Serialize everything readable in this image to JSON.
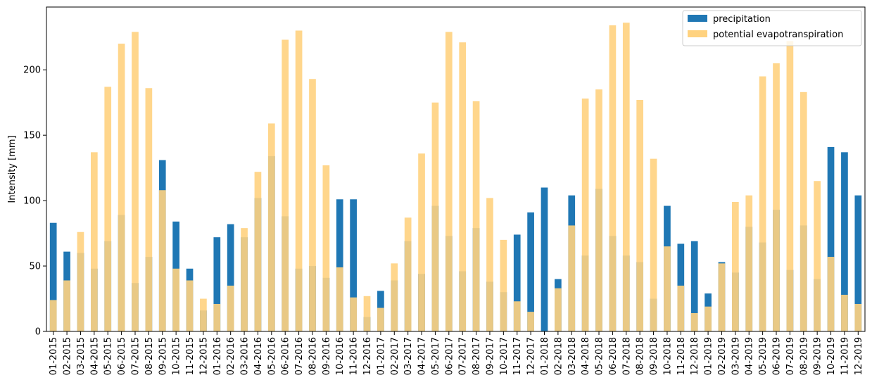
{
  "chart_data": {
    "type": "bar",
    "stacked": false,
    "overlay": true,
    "title": "",
    "xlabel": "",
    "ylabel": "Intensity [mm]",
    "ylim": [
      0,
      248
    ],
    "yticks": [
      0,
      50,
      100,
      150,
      200
    ],
    "grid": false,
    "legend_position": "top-right",
    "categories": [
      "01-2015",
      "02-2015",
      "03-2015",
      "04-2015",
      "05-2015",
      "06-2015",
      "07-2015",
      "08-2015",
      "09-2015",
      "10-2015",
      "11-2015",
      "12-2015",
      "01-2016",
      "02-2016",
      "03-2016",
      "04-2016",
      "05-2016",
      "06-2016",
      "07-2016",
      "08-2016",
      "09-2016",
      "10-2016",
      "11-2016",
      "12-2016",
      "01-2017",
      "02-2017",
      "03-2017",
      "04-2017",
      "05-2017",
      "06-2017",
      "07-2017",
      "08-2017",
      "09-2017",
      "10-2017",
      "11-2017",
      "12-2017",
      "01-2018",
      "02-2018",
      "03-2018",
      "04-2018",
      "05-2018",
      "06-2018",
      "07-2018",
      "08-2018",
      "09-2018",
      "10-2018",
      "11-2018",
      "12-2018",
      "01-2019",
      "02-2019",
      "03-2019",
      "04-2019",
      "05-2019",
      "06-2019",
      "07-2019",
      "08-2019",
      "09-2019",
      "10-2019",
      "11-2019",
      "12-2019"
    ],
    "series": [
      {
        "name": "precipitation",
        "color": "#1f77b4",
        "values": [
          83,
          61,
          60,
          48,
          69,
          89,
          37,
          57,
          131,
          84,
          48,
          16,
          72,
          82,
          72,
          102,
          134,
          88,
          48,
          50,
          41,
          101,
          101,
          11,
          31,
          39,
          69,
          44,
          96,
          73,
          46,
          79,
          38,
          30,
          74,
          91,
          110,
          40,
          104,
          58,
          109,
          73,
          58,
          53,
          25,
          96,
          67,
          69,
          29,
          53,
          45,
          80,
          68,
          93,
          47,
          81,
          40,
          141,
          137,
          104
        ]
      },
      {
        "name": "potential evapotranspiration",
        "color": "#ffd27f",
        "values": [
          24,
          39,
          76,
          137,
          187,
          220,
          229,
          186,
          108,
          48,
          39,
          25,
          21,
          35,
          79,
          122,
          159,
          223,
          230,
          193,
          127,
          49,
          26,
          27,
          18,
          52,
          87,
          136,
          175,
          229,
          221,
          176,
          102,
          70,
          23,
          15,
          0,
          33,
          81,
          178,
          185,
          234,
          236,
          177,
          132,
          65,
          35,
          14,
          19,
          52,
          99,
          104,
          195,
          205,
          222,
          183,
          115,
          57,
          28,
          21
        ]
      }
    ]
  }
}
